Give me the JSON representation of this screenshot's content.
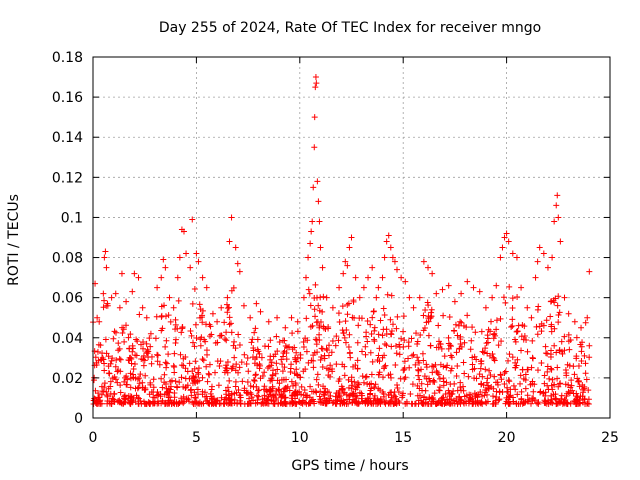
{
  "chart_data": {
    "type": "scatter",
    "title": "Day 255 of 2024, Rate Of TEC Index for receiver mngo",
    "xlabel": "GPS time / hours",
    "ylabel": "ROTI / TECUs",
    "xlim": [
      0,
      25
    ],
    "ylim": [
      0,
      0.18
    ],
    "x_ticks": [
      "0",
      "5",
      "10",
      "15",
      "20",
      "25"
    ],
    "x_tick_values": [
      0,
      5,
      10,
      15,
      20,
      25
    ],
    "y_ticks": [
      "0",
      "0.02",
      "0.04",
      "0.06",
      "0.08",
      "0.1",
      "0.12",
      "0.14",
      "0.16",
      "0.18"
    ],
    "y_tick_values": [
      0,
      0.02,
      0.04,
      0.06,
      0.08,
      0.1,
      0.12,
      0.14,
      0.16,
      0.18
    ],
    "grid": true,
    "marker": "+",
    "series": [
      {
        "name": "ROTI",
        "color": "#ff0000",
        "points": [
          [
            0.1,
            0.067
          ],
          [
            0.2,
            0.05
          ],
          [
            0.3,
            0.048
          ],
          [
            0.5,
            0.062
          ],
          [
            0.55,
            0.08
          ],
          [
            0.6,
            0.083
          ],
          [
            0.65,
            0.075
          ],
          [
            0.7,
            0.057
          ],
          [
            0.9,
            0.06
          ],
          [
            1.1,
            0.062
          ],
          [
            1.3,
            0.055
          ],
          [
            1.4,
            0.072
          ],
          [
            1.6,
            0.058
          ],
          [
            1.9,
            0.063
          ],
          [
            2.0,
            0.072
          ],
          [
            2.2,
            0.07
          ],
          [
            2.4,
            0.055
          ],
          [
            2.6,
            0.05
          ],
          [
            2.8,
            0.042
          ],
          [
            3.1,
            0.065
          ],
          [
            3.3,
            0.07
          ],
          [
            3.4,
            0.079
          ],
          [
            3.5,
            0.075
          ],
          [
            3.7,
            0.06
          ],
          [
            3.9,
            0.055
          ],
          [
            4.1,
            0.07
          ],
          [
            4.2,
            0.08
          ],
          [
            4.3,
            0.094
          ],
          [
            4.4,
            0.093
          ],
          [
            4.5,
            0.082
          ],
          [
            4.7,
            0.075
          ],
          [
            4.8,
            0.099
          ],
          [
            5.0,
            0.082
          ],
          [
            5.1,
            0.078
          ],
          [
            5.3,
            0.07
          ],
          [
            5.5,
            0.065
          ],
          [
            5.8,
            0.052
          ],
          [
            6.0,
            0.048
          ],
          [
            6.2,
            0.055
          ],
          [
            6.5,
            0.06
          ],
          [
            6.6,
            0.088
          ],
          [
            6.7,
            0.1
          ],
          [
            6.9,
            0.085
          ],
          [
            7.0,
            0.077
          ],
          [
            7.1,
            0.073
          ],
          [
            7.3,
            0.056
          ],
          [
            7.6,
            0.05
          ],
          [
            7.9,
            0.057
          ],
          [
            8.1,
            0.053
          ],
          [
            8.5,
            0.048
          ],
          [
            8.9,
            0.05
          ],
          [
            9.3,
            0.045
          ],
          [
            9.6,
            0.05
          ],
          [
            9.9,
            0.048
          ],
          [
            10.2,
            0.06
          ],
          [
            10.3,
            0.07
          ],
          [
            10.4,
            0.08
          ],
          [
            10.5,
            0.087
          ],
          [
            10.55,
            0.093
          ],
          [
            10.6,
            0.098
          ],
          [
            10.65,
            0.115
          ],
          [
            10.7,
            0.135
          ],
          [
            10.72,
            0.15
          ],
          [
            10.75,
            0.165
          ],
          [
            10.78,
            0.17
          ],
          [
            10.8,
            0.167
          ],
          [
            10.85,
            0.118
          ],
          [
            10.9,
            0.108
          ],
          [
            10.95,
            0.098
          ],
          [
            11.0,
            0.085
          ],
          [
            11.1,
            0.075
          ],
          [
            11.3,
            0.06
          ],
          [
            11.6,
            0.055
          ],
          [
            11.9,
            0.065
          ],
          [
            12.1,
            0.072
          ],
          [
            12.2,
            0.078
          ],
          [
            12.3,
            0.076
          ],
          [
            12.4,
            0.085
          ],
          [
            12.5,
            0.09
          ],
          [
            12.7,
            0.07
          ],
          [
            12.9,
            0.06
          ],
          [
            13.1,
            0.065
          ],
          [
            13.3,
            0.07
          ],
          [
            13.5,
            0.075
          ],
          [
            13.7,
            0.06
          ],
          [
            13.8,
            0.065
          ],
          [
            14.0,
            0.07
          ],
          [
            14.1,
            0.08
          ],
          [
            14.2,
            0.088
          ],
          [
            14.3,
            0.091
          ],
          [
            14.4,
            0.085
          ],
          [
            14.5,
            0.08
          ],
          [
            14.6,
            0.078
          ],
          [
            14.7,
            0.074
          ],
          [
            14.9,
            0.07
          ],
          [
            15.1,
            0.068
          ],
          [
            15.3,
            0.06
          ],
          [
            15.5,
            0.055
          ],
          [
            15.8,
            0.06
          ],
          [
            16.0,
            0.078
          ],
          [
            16.2,
            0.075
          ],
          [
            16.4,
            0.072
          ],
          [
            16.6,
            0.062
          ],
          [
            16.9,
            0.064
          ],
          [
            17.2,
            0.066
          ],
          [
            17.5,
            0.058
          ],
          [
            17.8,
            0.062
          ],
          [
            18.1,
            0.068
          ],
          [
            18.4,
            0.065
          ],
          [
            18.7,
            0.063
          ],
          [
            19.0,
            0.055
          ],
          [
            19.3,
            0.06
          ],
          [
            19.5,
            0.066
          ],
          [
            19.7,
            0.08
          ],
          [
            19.8,
            0.085
          ],
          [
            19.9,
            0.09
          ],
          [
            20.0,
            0.092
          ],
          [
            20.1,
            0.088
          ],
          [
            20.3,
            0.082
          ],
          [
            20.5,
            0.08
          ],
          [
            20.7,
            0.065
          ],
          [
            21.0,
            0.055
          ],
          [
            21.2,
            0.05
          ],
          [
            21.4,
            0.07
          ],
          [
            21.5,
            0.078
          ],
          [
            21.6,
            0.085
          ],
          [
            21.8,
            0.082
          ],
          [
            22.0,
            0.075
          ],
          [
            22.2,
            0.08
          ],
          [
            22.3,
            0.098
          ],
          [
            22.4,
            0.106
          ],
          [
            22.45,
            0.111
          ],
          [
            22.5,
            0.1
          ],
          [
            22.6,
            0.088
          ],
          [
            22.8,
            0.06
          ],
          [
            23.0,
            0.052
          ],
          [
            23.3,
            0.048
          ],
          [
            23.6,
            0.045
          ],
          [
            23.9,
            0.05
          ],
          [
            24.0,
            0.073
          ]
        ]
      }
    ]
  }
}
